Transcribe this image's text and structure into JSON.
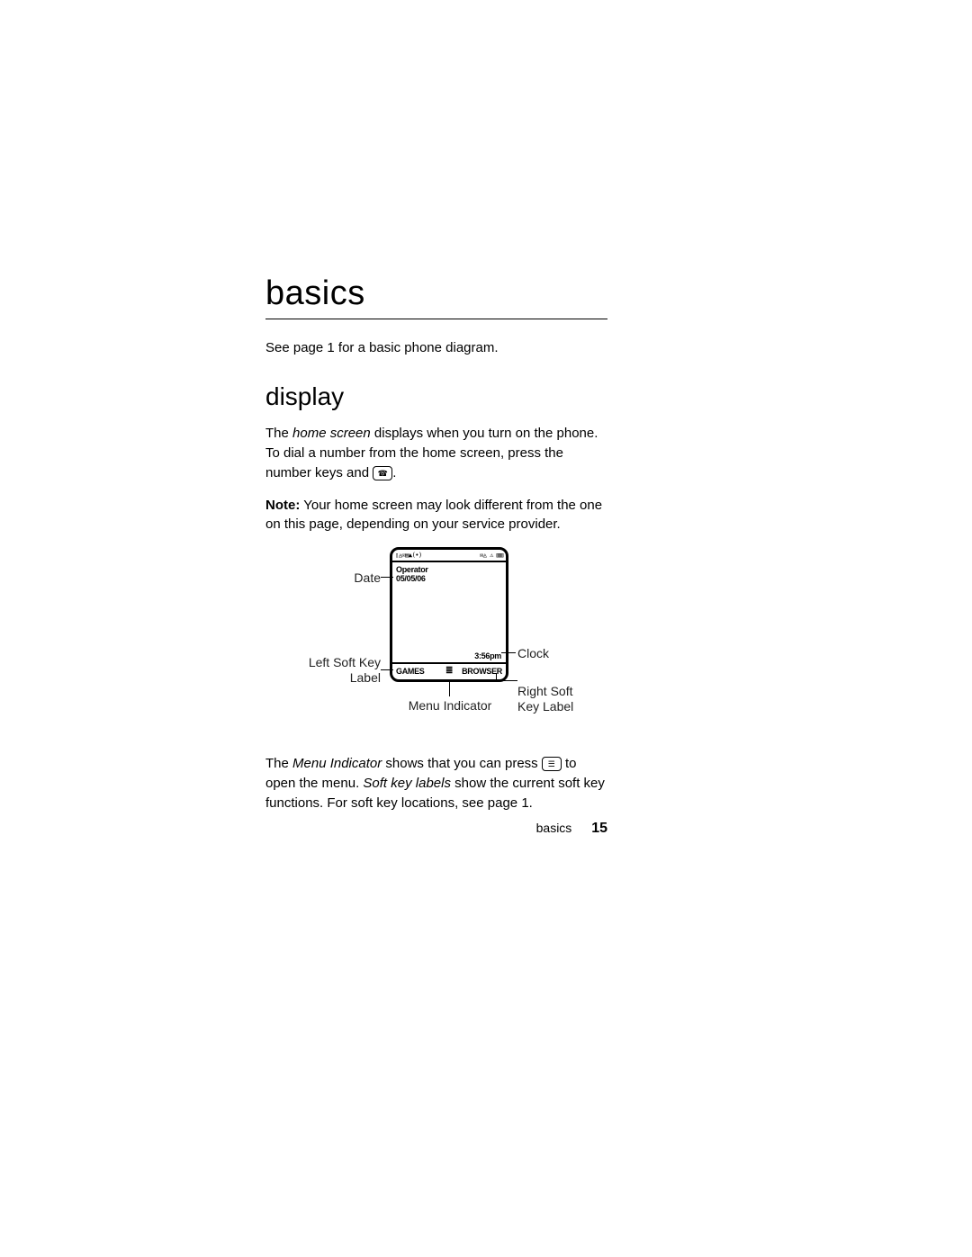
{
  "page": {
    "title": "basics",
    "intro": "See page 1 for a basic phone diagram.",
    "section": "display",
    "para1_a": "The ",
    "para1_em1": "home screen",
    "para1_b": " displays when you turn on the phone. To dial a number from the home screen, press the number keys and ",
    "para1_c": ".",
    "para2_strong": "Note:",
    "para2_a": " Your home screen may look different from the one on this page, depending on your service provider.",
    "para3_a": "The ",
    "para3_em1": "Menu Indicator",
    "para3_b": " shows that you can press ",
    "para3_c": " to open the menu. ",
    "para3_em2": "Soft key labels",
    "para3_d": " show the current soft key functions. For soft key locations, see page 1."
  },
  "diagram": {
    "status_left": "▯◬✉▤▲(•)",
    "status_right": "✉◬ ⚠ ▥▥",
    "operator": "Operator",
    "date": "05/05/06",
    "clock": "3:56pm",
    "soft_left": "GAMES",
    "soft_right": "BROWSER",
    "menu_glyph": "≣",
    "callouts": {
      "date": "Date",
      "left_soft": "Left Soft Key Label",
      "menu": "Menu Indicator",
      "clock": "Clock",
      "right_soft": "Right Soft Key Label"
    },
    "colors": {
      "stroke": "#000000",
      "bg": "#ffffff",
      "text": "#000000",
      "callout_text": "#222222"
    }
  },
  "footer": {
    "section": "basics",
    "page_number": "15"
  }
}
